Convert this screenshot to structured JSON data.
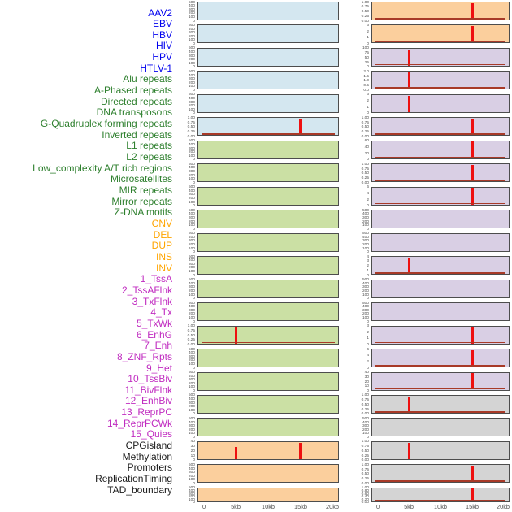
{
  "palette": {
    "panel_blue": "#d4e7f0",
    "panel_green": "#cbe0a4",
    "panel_orange": "#fbcf9d",
    "panel_purple": "#d9cfe4",
    "panel_gray": "#d4d4d4",
    "label_blue": "#0000ee",
    "label_green": "#2d7f2d",
    "label_orange": "#ffa500",
    "label_magenta": "#c02cc0",
    "label_black": "#1a1a1a",
    "spike_red": "#ee1010",
    "baseline_red": "#a83a28",
    "axis_text": "#4d4d4d",
    "panel_border": "#4d4d4d"
  },
  "row_labels": [
    {
      "text": "AAV2",
      "color": "blue"
    },
    {
      "text": "EBV",
      "color": "blue"
    },
    {
      "text": "HBV",
      "color": "blue"
    },
    {
      "text": "HIV",
      "color": "blue"
    },
    {
      "text": "HPV",
      "color": "blue"
    },
    {
      "text": "HTLV-1",
      "color": "blue"
    },
    {
      "text": "Alu repeats",
      "color": "green"
    },
    {
      "text": "A-Phased repeats",
      "color": "green"
    },
    {
      "text": "Directed repeats",
      "color": "green"
    },
    {
      "text": "DNA transposons",
      "color": "green"
    },
    {
      "text": "G-Quadruplex forming repeats",
      "color": "green"
    },
    {
      "text": "Inverted repeats",
      "color": "green"
    },
    {
      "text": "L1 repeats",
      "color": "green"
    },
    {
      "text": "L2 repeats",
      "color": "green"
    },
    {
      "text": "Low_complexity A/T rich regions",
      "color": "green"
    },
    {
      "text": "Microsatellites",
      "color": "green"
    },
    {
      "text": "MIR repeats",
      "color": "green"
    },
    {
      "text": "Mirror repeats",
      "color": "green"
    },
    {
      "text": "Z-DNA motifs",
      "color": "green"
    },
    {
      "text": "CNV",
      "color": "orange"
    },
    {
      "text": "DEL",
      "color": "orange"
    },
    {
      "text": "DUP",
      "color": "orange"
    },
    {
      "text": "INS",
      "color": "orange"
    },
    {
      "text": "INV",
      "color": "orange"
    },
    {
      "text": "1_TssA",
      "color": "magenta"
    },
    {
      "text": "2_TssAFlnk",
      "color": "magenta"
    },
    {
      "text": "3_TxFlnk",
      "color": "magenta"
    },
    {
      "text": "4_Tx",
      "color": "magenta"
    },
    {
      "text": "5_TxWk",
      "color": "magenta"
    },
    {
      "text": "6_EnhG",
      "color": "magenta"
    },
    {
      "text": "7_Enh",
      "color": "magenta"
    },
    {
      "text": "8_ZNF_Rpts",
      "color": "magenta"
    },
    {
      "text": "9_Het",
      "color": "magenta"
    },
    {
      "text": "10_TssBiv",
      "color": "magenta"
    },
    {
      "text": "11_BivFlnk",
      "color": "magenta"
    },
    {
      "text": "12_EnhBiv",
      "color": "magenta"
    },
    {
      "text": "13_ReprPC",
      "color": "magenta"
    },
    {
      "text": "14_ReprPCWk",
      "color": "magenta"
    },
    {
      "text": "15_Quies",
      "color": "magenta"
    },
    {
      "text": "CPGisland",
      "color": "black"
    },
    {
      "text": "Methylation",
      "color": "black"
    },
    {
      "text": "Promoters",
      "color": "black"
    },
    {
      "text": "ReplicationTiming",
      "color": "black"
    },
    {
      "text": "TAD_boundary",
      "color": "black"
    }
  ],
  "chart_data": {
    "type": "line",
    "layout": "two columns of 22 stacked signal-profile mini panels; feature labels listed at left",
    "x": {
      "tick_labels": [
        "0",
        "5kb",
        "10kb",
        "15kb",
        "20kb"
      ],
      "tick_kb": [
        0,
        5,
        10,
        15,
        20
      ],
      "range_kb": [
        0,
        20
      ]
    },
    "columns": [
      {
        "panels": [
          {
            "feature": "AAV2",
            "bg": "blue",
            "yticks": [
              "500",
              "400",
              "300",
              "200",
              "100",
              "0"
            ],
            "peaks": [],
            "baseline": false
          },
          {
            "feature": "EBV",
            "bg": "blue",
            "yticks": [
              "500",
              "400",
              "300",
              "200",
              "100",
              "0"
            ],
            "peaks": [],
            "baseline": false
          },
          {
            "feature": "HBV",
            "bg": "blue",
            "yticks": [
              "500",
              "400",
              "300",
              "200",
              "100",
              "0"
            ],
            "peaks": [],
            "baseline": false
          },
          {
            "feature": "HIV",
            "bg": "blue",
            "yticks": [
              "500",
              "400",
              "300",
              "200",
              "100",
              "0"
            ],
            "peaks": [],
            "baseline": false
          },
          {
            "feature": "HPV",
            "bg": "blue",
            "yticks": [
              "500",
              "400",
              "300",
              "200",
              "100",
              "0"
            ],
            "peaks": [],
            "baseline": false
          },
          {
            "feature": "HTLV-1",
            "bg": "blue",
            "yticks": [
              "1.00",
              "0.75",
              "0.50",
              "0.25",
              "0.00"
            ],
            "peaks": [
              {
                "kb": 15,
                "rel_h": 0.97,
                "w": 3
              }
            ],
            "baseline": true
          },
          {
            "feature": "Alu repeats",
            "bg": "green",
            "yticks": [
              "500",
              "400",
              "300",
              "200",
              "100",
              "0"
            ],
            "peaks": [],
            "baseline": false
          },
          {
            "feature": "A-Phased repeats",
            "bg": "green",
            "yticks": [
              "500",
              "400",
              "300",
              "200",
              "100",
              "0"
            ],
            "peaks": [],
            "baseline": false
          },
          {
            "feature": "Directed repeats",
            "bg": "green",
            "yticks": [
              "500",
              "400",
              "300",
              "200",
              "100",
              "0"
            ],
            "peaks": [],
            "baseline": false
          },
          {
            "feature": "DNA transposons",
            "bg": "green",
            "yticks": [
              "500",
              "400",
              "300",
              "200",
              "100",
              "0"
            ],
            "peaks": [],
            "baseline": false
          },
          {
            "feature": "G-Quadruplex forming repeats",
            "bg": "green",
            "yticks": [
              "500",
              "400",
              "300",
              "200",
              "100",
              "0"
            ],
            "peaks": [],
            "baseline": false
          },
          {
            "feature": "Inverted repeats",
            "bg": "green",
            "yticks": [
              "500",
              "400",
              "300",
              "200",
              "100",
              "0"
            ],
            "peaks": [],
            "baseline": false
          },
          {
            "feature": "L1 repeats",
            "bg": "green",
            "yticks": [
              "500",
              "400",
              "300",
              "200",
              "100",
              "0"
            ],
            "peaks": [],
            "baseline": false
          },
          {
            "feature": "L2 repeats",
            "bg": "green",
            "yticks": [
              "500",
              "400",
              "300",
              "200",
              "100",
              "0"
            ],
            "peaks": [],
            "baseline": false
          },
          {
            "feature": "Low_complexity A/T rich regions",
            "bg": "green",
            "yticks": [
              "1.00",
              "0.75",
              "0.50",
              "0.25",
              "0.00"
            ],
            "peaks": [
              {
                "kb": 5,
                "rel_h": 0.97,
                "w": 3
              }
            ],
            "baseline": true
          },
          {
            "feature": "Microsatellites",
            "bg": "green",
            "yticks": [
              "500",
              "400",
              "300",
              "200",
              "100",
              "0"
            ],
            "peaks": [],
            "baseline": false
          },
          {
            "feature": "MIR repeats",
            "bg": "green",
            "yticks": [
              "500",
              "400",
              "300",
              "200",
              "100",
              "0"
            ],
            "peaks": [],
            "baseline": false
          },
          {
            "feature": "Mirror repeats",
            "bg": "green",
            "yticks": [
              "500",
              "400",
              "300",
              "200",
              "100",
              "0"
            ],
            "peaks": [],
            "baseline": false
          },
          {
            "feature": "Z-DNA motifs",
            "bg": "green",
            "yticks": [
              "500",
              "400",
              "300",
              "200",
              "100",
              "0"
            ],
            "peaks": [],
            "baseline": false
          },
          {
            "feature": "CNV",
            "bg": "orange",
            "yticks": [
              "40",
              "30",
              "20",
              "10",
              "0"
            ],
            "peaks": [
              {
                "kb": 5,
                "rel_h": 0.72,
                "w": 3
              },
              {
                "kb": 15,
                "rel_h": 0.97,
                "w": 4
              }
            ],
            "baseline": true
          },
          {
            "feature": "DEL",
            "bg": "orange",
            "yticks": [
              "500",
              "400",
              "300",
              "200",
              "100",
              "0"
            ],
            "peaks": [],
            "baseline": false
          },
          {
            "feature": "DUP",
            "bg": "orange",
            "yticks": [
              "500",
              "400",
              "300",
              "200",
              "100",
              "0"
            ],
            "peaks": [],
            "baseline": false
          }
        ]
      },
      {
        "panels": [
          {
            "feature": "INS",
            "bg": "orange",
            "yticks": [
              "1.00",
              "0.75",
              "0.50",
              "0.25",
              "0.00"
            ],
            "peaks": [
              {
                "kb": 15,
                "rel_h": 0.97,
                "w": 4
              }
            ],
            "baseline": true
          },
          {
            "feature": "INV",
            "bg": "orange",
            "yticks": [
              "3",
              "2",
              "1",
              "0"
            ],
            "peaks": [
              {
                "kb": 15,
                "rel_h": 0.97,
                "w": 4
              }
            ],
            "baseline": true
          },
          {
            "feature": "1_TssA",
            "bg": "purple",
            "yticks": [
              "100",
              "75",
              "50",
              "25",
              "0"
            ],
            "peaks": [
              {
                "kb": 5,
                "rel_h": 0.97,
                "w": 3
              }
            ],
            "baseline": true
          },
          {
            "feature": "2_TssAFlnk",
            "bg": "purple",
            "yticks": [
              "2.0",
              "1.5",
              "1.0",
              "0.5",
              "0.0"
            ],
            "peaks": [
              {
                "kb": 5,
                "rel_h": 0.97,
                "w": 3
              }
            ],
            "baseline": true
          },
          {
            "feature": "3_TxFlnk",
            "bg": "purple",
            "yticks": [
              "3",
              "2",
              "1",
              "0"
            ],
            "peaks": [
              {
                "kb": 5,
                "rel_h": 0.97,
                "w": 3
              }
            ],
            "baseline": true
          },
          {
            "feature": "4_Tx",
            "bg": "purple",
            "yticks": [
              "1.00",
              "0.75",
              "0.50",
              "0.25",
              "0.00"
            ],
            "peaks": [
              {
                "kb": 15,
                "rel_h": 0.97,
                "w": 4
              }
            ],
            "baseline": true
          },
          {
            "feature": "5_TxWk",
            "bg": "purple",
            "yticks": [
              "60",
              "40",
              "20",
              "0"
            ],
            "peaks": [
              {
                "kb": 15,
                "rel_h": 0.97,
                "w": 4
              }
            ],
            "baseline": true
          },
          {
            "feature": "6_EnhG",
            "bg": "purple",
            "yticks": [
              "1.00",
              "0.75",
              "0.50",
              "0.25",
              "0.00"
            ],
            "peaks": [
              {
                "kb": 15,
                "rel_h": 0.97,
                "w": 4
              }
            ],
            "baseline": true
          },
          {
            "feature": "7_Enh",
            "bg": "purple",
            "yticks": [
              "6",
              "4",
              "2",
              "0"
            ],
            "peaks": [
              {
                "kb": 15,
                "rel_h": 0.97,
                "w": 4
              }
            ],
            "baseline": true
          },
          {
            "feature": "8_ZNF_Rpts",
            "bg": "purple",
            "yticks": [
              "500",
              "400",
              "300",
              "200",
              "100",
              "0"
            ],
            "peaks": [],
            "baseline": false
          },
          {
            "feature": "9_Het",
            "bg": "purple",
            "yticks": [
              "500",
              "400",
              "300",
              "200",
              "100",
              "0"
            ],
            "peaks": [],
            "baseline": false
          },
          {
            "feature": "10_TssBiv",
            "bg": "purple",
            "yticks": [
              "4",
              "3",
              "2",
              "1",
              "0"
            ],
            "peaks": [
              {
                "kb": 5,
                "rel_h": 0.97,
                "w": 3
              }
            ],
            "baseline": true
          },
          {
            "feature": "11_BivFlnk",
            "bg": "purple",
            "yticks": [
              "500",
              "400",
              "300",
              "200",
              "100",
              "0"
            ],
            "peaks": [],
            "baseline": false
          },
          {
            "feature": "12_EnhBiv",
            "bg": "purple",
            "yticks": [
              "500",
              "400",
              "300",
              "200",
              "100",
              "0"
            ],
            "peaks": [],
            "baseline": false
          },
          {
            "feature": "13_ReprPC",
            "bg": "purple",
            "yticks": [
              "3",
              "2",
              "1",
              "0"
            ],
            "peaks": [
              {
                "kb": 15,
                "rel_h": 0.97,
                "w": 4
              }
            ],
            "baseline": true
          },
          {
            "feature": "14_ReprPCWk",
            "bg": "purple",
            "yticks": [
              "6",
              "4",
              "2",
              "0"
            ],
            "peaks": [
              {
                "kb": 15,
                "rel_h": 0.97,
                "w": 4
              }
            ],
            "baseline": true
          },
          {
            "feature": "15_Quies",
            "bg": "purple",
            "yticks": [
              "40",
              "30",
              "20",
              "10",
              "0"
            ],
            "peaks": [
              {
                "kb": 15,
                "rel_h": 0.97,
                "w": 4
              }
            ],
            "baseline": true
          },
          {
            "feature": "CPGisland",
            "bg": "gray",
            "yticks": [
              "1.00",
              "0.75",
              "0.50",
              "0.25",
              "0.00"
            ],
            "peaks": [
              {
                "kb": 5,
                "rel_h": 0.97,
                "w": 3
              }
            ],
            "baseline": true
          },
          {
            "feature": "Methylation",
            "bg": "gray",
            "yticks": [
              "500",
              "400",
              "300",
              "200",
              "100",
              "0"
            ],
            "peaks": [],
            "baseline": false
          },
          {
            "feature": "Promoters",
            "bg": "gray",
            "yticks": [
              "1.00",
              "0.75",
              "0.50",
              "0.25",
              "0.00"
            ],
            "peaks": [
              {
                "kb": 5,
                "rel_h": 0.97,
                "w": 3
              }
            ],
            "baseline": true
          },
          {
            "feature": "ReplicationTiming",
            "bg": "gray",
            "yticks": [
              "1.00",
              "0.75",
              "0.50",
              "0.25",
              "0.00"
            ],
            "peaks": [
              {
                "kb": 15,
                "rel_h": 0.97,
                "w": 4
              }
            ],
            "baseline": true
          },
          {
            "feature": "TAD_boundary",
            "bg": "gray",
            "yticks": [
              "1.00",
              "0.80",
              "0.60",
              "0.40",
              "0.20",
              "0.00"
            ],
            "peaks": [
              {
                "kb": 15,
                "rel_h": 0.97,
                "w": 4
              }
            ],
            "baseline": true
          }
        ]
      }
    ]
  }
}
